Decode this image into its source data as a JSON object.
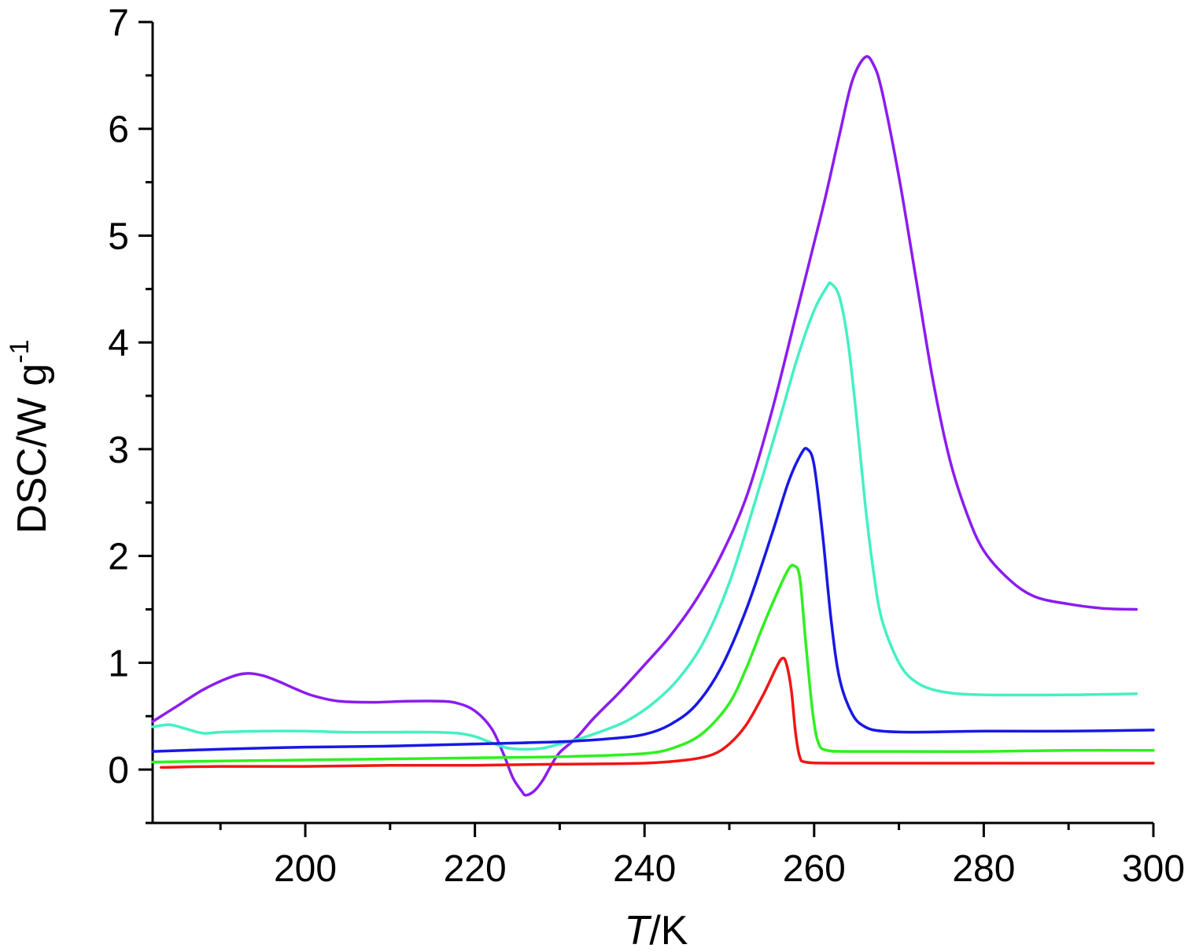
{
  "chart_data": {
    "type": "line",
    "title": "",
    "xlabel_italic": "T",
    "xlabel_rest": "/K",
    "ylabel_main": "DSC/W g",
    "ylabel_sup": "-1",
    "xlim": [
      182,
      300
    ],
    "ylim": [
      -0.5,
      7
    ],
    "xticks": [
      200,
      220,
      240,
      260,
      280,
      300
    ],
    "xtick_labels": [
      "200",
      "220",
      "240",
      "260",
      "280",
      "300"
    ],
    "yticks": [
      0,
      1,
      2,
      3,
      4,
      5,
      6,
      7
    ],
    "ytick_labels": [
      "0",
      "1",
      "2",
      "3",
      "4",
      "5",
      "6",
      "7"
    ],
    "grid": false,
    "legend": "none",
    "series": [
      {
        "color": "#8b1cf0",
        "points": [
          [
            182,
            0.45
          ],
          [
            185,
            0.6
          ],
          [
            188,
            0.75
          ],
          [
            191,
            0.86
          ],
          [
            193,
            0.9
          ],
          [
            195,
            0.88
          ],
          [
            197,
            0.82
          ],
          [
            199,
            0.75
          ],
          [
            201,
            0.69
          ],
          [
            204,
            0.64
          ],
          [
            208,
            0.63
          ],
          [
            212,
            0.64
          ],
          [
            216,
            0.64
          ],
          [
            218,
            0.62
          ],
          [
            220,
            0.55
          ],
          [
            222,
            0.38
          ],
          [
            223.5,
            0.12
          ],
          [
            224.5,
            -0.08
          ],
          [
            225.5,
            -0.2
          ],
          [
            226,
            -0.24
          ],
          [
            227,
            -0.2
          ],
          [
            228,
            -0.1
          ],
          [
            229,
            0.04
          ],
          [
            230,
            0.16
          ],
          [
            232,
            0.3
          ],
          [
            234,
            0.48
          ],
          [
            237,
            0.72
          ],
          [
            240,
            0.98
          ],
          [
            243,
            1.25
          ],
          [
            246,
            1.58
          ],
          [
            249,
            2.0
          ],
          [
            252,
            2.55
          ],
          [
            255,
            3.35
          ],
          [
            258,
            4.3
          ],
          [
            261,
            5.25
          ],
          [
            263,
            5.95
          ],
          [
            264.5,
            6.45
          ],
          [
            266,
            6.67
          ],
          [
            267,
            6.6
          ],
          [
            268,
            6.35
          ],
          [
            270,
            5.55
          ],
          [
            272,
            4.6
          ],
          [
            274,
            3.65
          ],
          [
            276,
            2.9
          ],
          [
            278,
            2.4
          ],
          [
            280,
            2.05
          ],
          [
            283,
            1.78
          ],
          [
            286,
            1.62
          ],
          [
            290,
            1.55
          ],
          [
            294,
            1.51
          ],
          [
            298,
            1.5
          ]
        ]
      },
      {
        "color": "#44f0c4",
        "points": [
          [
            182,
            0.4
          ],
          [
            184,
            0.42
          ],
          [
            186,
            0.38
          ],
          [
            188,
            0.34
          ],
          [
            190,
            0.35
          ],
          [
            195,
            0.36
          ],
          [
            200,
            0.36
          ],
          [
            205,
            0.35
          ],
          [
            210,
            0.35
          ],
          [
            215,
            0.35
          ],
          [
            218,
            0.34
          ],
          [
            220,
            0.31
          ],
          [
            222,
            0.25
          ],
          [
            224,
            0.2
          ],
          [
            226,
            0.19
          ],
          [
            228,
            0.2
          ],
          [
            230,
            0.24
          ],
          [
            232,
            0.28
          ],
          [
            235,
            0.36
          ],
          [
            238,
            0.46
          ],
          [
            241,
            0.62
          ],
          [
            244,
            0.85
          ],
          [
            247,
            1.2
          ],
          [
            250,
            1.75
          ],
          [
            253,
            2.5
          ],
          [
            256,
            3.3
          ],
          [
            258,
            3.85
          ],
          [
            260,
            4.3
          ],
          [
            261.5,
            4.52
          ],
          [
            262,
            4.55
          ],
          [
            263,
            4.42
          ],
          [
            264,
            4.0
          ],
          [
            265,
            3.3
          ],
          [
            266,
            2.5
          ],
          [
            267,
            1.85
          ],
          [
            268,
            1.4
          ],
          [
            270,
            1.0
          ],
          [
            272,
            0.82
          ],
          [
            275,
            0.73
          ],
          [
            280,
            0.7
          ],
          [
            290,
            0.7
          ],
          [
            298,
            0.71
          ]
        ]
      },
      {
        "color": "#1818e6",
        "points": [
          [
            182,
            0.17
          ],
          [
            190,
            0.19
          ],
          [
            200,
            0.21
          ],
          [
            210,
            0.22
          ],
          [
            220,
            0.24
          ],
          [
            230,
            0.26
          ],
          [
            236,
            0.29
          ],
          [
            240,
            0.33
          ],
          [
            243,
            0.42
          ],
          [
            246,
            0.6
          ],
          [
            249,
            0.95
          ],
          [
            252,
            1.5
          ],
          [
            255,
            2.2
          ],
          [
            257,
            2.7
          ],
          [
            258.5,
            2.96
          ],
          [
            259.2,
            3.0
          ],
          [
            260,
            2.85
          ],
          [
            261,
            2.2
          ],
          [
            262,
            1.4
          ],
          [
            263,
            0.85
          ],
          [
            264.5,
            0.52
          ],
          [
            266,
            0.4
          ],
          [
            268,
            0.36
          ],
          [
            272,
            0.35
          ],
          [
            280,
            0.36
          ],
          [
            290,
            0.36
          ],
          [
            300,
            0.37
          ]
        ]
      },
      {
        "color": "#2ff020",
        "points": [
          [
            182,
            0.07
          ],
          [
            190,
            0.08
          ],
          [
            200,
            0.09
          ],
          [
            210,
            0.1
          ],
          [
            220,
            0.11
          ],
          [
            230,
            0.12
          ],
          [
            240,
            0.15
          ],
          [
            244,
            0.22
          ],
          [
            247,
            0.35
          ],
          [
            250,
            0.62
          ],
          [
            252,
            0.95
          ],
          [
            254,
            1.35
          ],
          [
            256,
            1.72
          ],
          [
            257,
            1.88
          ],
          [
            257.6,
            1.91
          ],
          [
            258.3,
            1.8
          ],
          [
            259,
            1.2
          ],
          [
            259.8,
            0.55
          ],
          [
            260.5,
            0.25
          ],
          [
            261.5,
            0.18
          ],
          [
            264,
            0.17
          ],
          [
            270,
            0.17
          ],
          [
            280,
            0.17
          ],
          [
            290,
            0.18
          ],
          [
            300,
            0.18
          ]
        ]
      },
      {
        "color": "#f01616",
        "points": [
          [
            183,
            0.02
          ],
          [
            190,
            0.03
          ],
          [
            200,
            0.03
          ],
          [
            210,
            0.04
          ],
          [
            220,
            0.04
          ],
          [
            230,
            0.05
          ],
          [
            240,
            0.06
          ],
          [
            245,
            0.09
          ],
          [
            248,
            0.14
          ],
          [
            250,
            0.24
          ],
          [
            252,
            0.42
          ],
          [
            254,
            0.7
          ],
          [
            255.5,
            0.95
          ],
          [
            256.2,
            1.04
          ],
          [
            256.7,
            1.0
          ],
          [
            257.3,
            0.75
          ],
          [
            257.8,
            0.35
          ],
          [
            258.3,
            0.12
          ],
          [
            259,
            0.07
          ],
          [
            262,
            0.06
          ],
          [
            270,
            0.06
          ],
          [
            280,
            0.06
          ],
          [
            290,
            0.06
          ],
          [
            300,
            0.06
          ]
        ]
      }
    ]
  }
}
